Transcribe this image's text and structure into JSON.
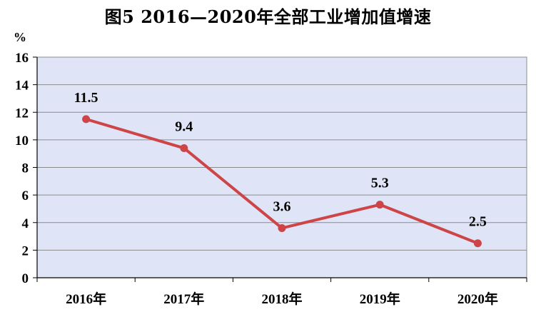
{
  "chart_data": {
    "type": "line",
    "title": "图5  2016—2020年全部工业增加值增速",
    "ylabel": "%",
    "categories": [
      "2016年",
      "2017年",
      "2018年",
      "2019年",
      "2020年"
    ],
    "series": [
      {
        "values": [
          11.5,
          9.4,
          3.6,
          5.3,
          2.5
        ],
        "data_labels": [
          "11.5",
          "9.4",
          "3.6",
          "5.3",
          "2.5"
        ]
      }
    ],
    "ylim": [
      0,
      16
    ],
    "yticks": [
      "0",
      "2",
      "4",
      "6",
      "8",
      "10",
      "12",
      "14",
      "16"
    ],
    "grid": true,
    "colors": {
      "plot_background": "#dfe5f7",
      "line": "#cd4547",
      "grid": "#8c8c8c",
      "axis": "#000000"
    }
  }
}
